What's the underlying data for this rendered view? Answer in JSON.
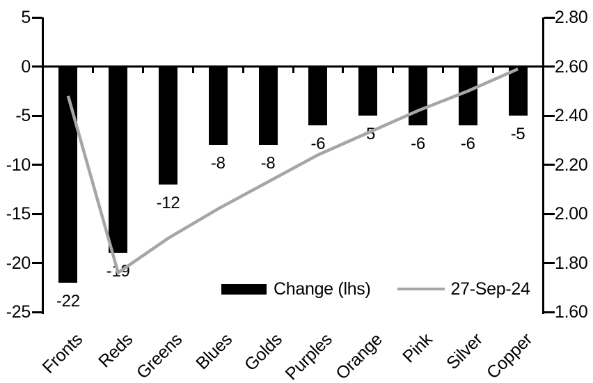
{
  "chart_data": {
    "type": "bar",
    "subtype": "bar-line-combo",
    "title": "",
    "categories": [
      "Fronts",
      "Reds",
      "Greens",
      "Blues",
      "Golds",
      "Purples",
      "Orange",
      "Pink",
      "Silver",
      "Copper"
    ],
    "series": [
      {
        "name": "Change (lhs)",
        "type": "bar",
        "axis": "left",
        "color": "#000000",
        "values": [
          -22,
          -19,
          -12,
          -8,
          -8,
          -6,
          -5,
          -6,
          -6,
          -5
        ],
        "data_labels": [
          "-22",
          "-19",
          "-12",
          "-8",
          "-8",
          "-6",
          "-5",
          "-6",
          "-6",
          "-5"
        ]
      },
      {
        "name": "27-Sep-24",
        "type": "line",
        "axis": "right",
        "color": "#a6a6a6",
        "values": [
          2.48,
          1.76,
          1.9,
          2.02,
          2.13,
          2.24,
          2.33,
          2.42,
          2.5,
          2.59
        ]
      }
    ],
    "left_axis": {
      "min": -25,
      "max": 5,
      "ticks": [
        5,
        0,
        -5,
        -10,
        -15,
        -20,
        -25
      ],
      "tick_labels": [
        "5",
        "0",
        "-5",
        "-10",
        "-15",
        "-20",
        "-25"
      ]
    },
    "right_axis": {
      "min": 1.6,
      "max": 2.8,
      "ticks": [
        2.8,
        2.6,
        2.4,
        2.2,
        2.0,
        1.8,
        1.6
      ],
      "tick_labels": [
        "2.80",
        "2.60",
        "2.40",
        "2.20",
        "2.00",
        "1.80",
        "1.60"
      ]
    },
    "legend": {
      "position": "bottom-center",
      "bar_label": "Change (lhs)",
      "line_label": "27-Sep-24"
    },
    "grid": "off",
    "colors": {
      "bar": "#000000",
      "line": "#a6a6a6",
      "axis": "#000000",
      "text": "#000000",
      "background": "#ffffff"
    }
  }
}
